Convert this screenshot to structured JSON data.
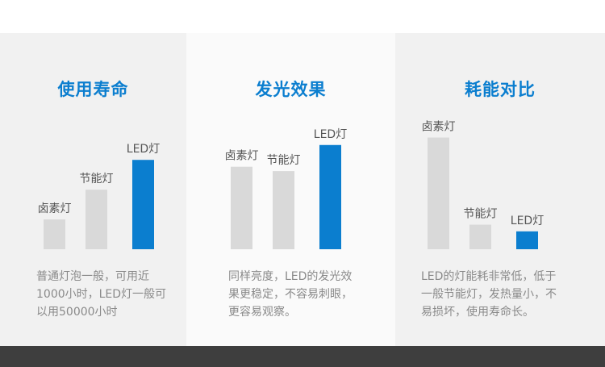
{
  "colors": {
    "accent": "#0b7ecf",
    "bar_gray": "#d9d9d9",
    "title_blue": "#0b7ecf"
  },
  "chart_data": [
    {
      "type": "bar",
      "title": "使用寿命",
      "categories": [
        "卤素灯",
        "节能灯",
        "LED灯"
      ],
      "values": [
        2,
        4,
        6
      ],
      "ylim": [
        0,
        6.5
      ],
      "highlight": "LED灯",
      "description": [
        "普通灯泡一般，可用近",
        "1000小时，LED灯一般可",
        "以用50000小时"
      ]
    },
    {
      "type": "bar",
      "title": "发光效果",
      "categories": [
        "卤素灯",
        "节能灯",
        "LED灯"
      ],
      "values": [
        3.8,
        3.6,
        4.8
      ],
      "ylim": [
        0,
        5.2
      ],
      "highlight": "LED灯",
      "description": [
        "同样亮度，LED的发光效",
        "果更稳定，不容易刺眼，",
        "更容易观察。"
      ]
    },
    {
      "type": "bar",
      "title": "耗能对比",
      "categories": [
        "卤素灯",
        "节能灯",
        "LED灯"
      ],
      "values": [
        5,
        1.1,
        0.8
      ],
      "ylim": [
        0,
        5.2
      ],
      "highlight": "LED灯",
      "description": [
        "LED的灯能耗非常低，低于",
        "一般节能灯，发热量小，不",
        "易损坏，使用寿命长。"
      ]
    }
  ]
}
